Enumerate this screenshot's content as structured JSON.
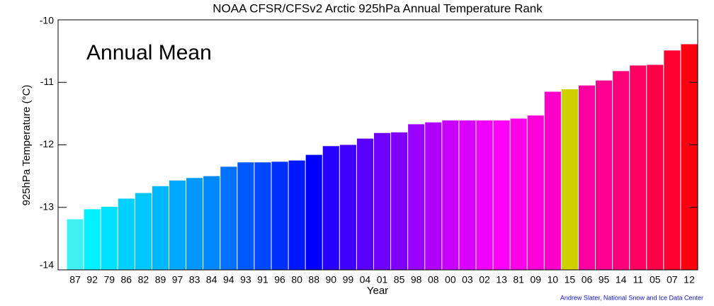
{
  "chart_data": {
    "type": "bar",
    "title": "NOAA CFSR/CFSv2 Arctic 925hPa Annual Temperature Rank",
    "annotation": "Annual Mean",
    "x_label": "Year",
    "y_label": "925hPa Temperature (°C)",
    "credit": "Andrew Slater, National Snow and Ice Data Center",
    "categories": [
      "87",
      "92",
      "79",
      "86",
      "82",
      "89",
      "97",
      "83",
      "84",
      "94",
      "93",
      "91",
      "96",
      "80",
      "88",
      "90",
      "99",
      "04",
      "01",
      "85",
      "98",
      "08",
      "00",
      "03",
      "02",
      "13",
      "81",
      "09",
      "10",
      "15",
      "06",
      "95",
      "14",
      "11",
      "05",
      "07",
      "12"
    ],
    "values": [
      -13.19,
      -13.03,
      -12.99,
      -12.86,
      -12.77,
      -12.66,
      -12.57,
      -12.53,
      -12.5,
      -12.35,
      -12.28,
      -12.28,
      -12.27,
      -12.25,
      -12.16,
      -12.02,
      -12.0,
      -11.9,
      -11.81,
      -11.8,
      -11.67,
      -11.64,
      -11.61,
      -11.61,
      -11.61,
      -11.61,
      -11.58,
      -11.53,
      -11.15,
      -11.11,
      -11.05,
      -10.97,
      -10.82,
      -10.73,
      -10.72,
      -10.49,
      -10.39
    ],
    "colors": [
      "#40f0f0",
      "#00f0ff",
      "#00e0ff",
      "#00d0ff",
      "#00c8ff",
      "#00b8ff",
      "#00a8ff",
      "#0098ff",
      "#0088ff",
      "#0070ff",
      "#0058ff",
      "#0048ff",
      "#0030ff",
      "#0018ff",
      "#0000ff",
      "#2800ff",
      "#4000ff",
      "#5800ff",
      "#7000ff",
      "#8000ff",
      "#9800ff",
      "#b000ff",
      "#c800ff",
      "#d800ff",
      "#f000ff",
      "#ff00f8",
      "#ff00e8",
      "#ff00d8",
      "#ff00c8",
      "#d0d000",
      "#ff00a0",
      "#ff0090",
      "#ff0078",
      "#ff0060",
      "#ff0048",
      "#ff0030",
      "#ff0010"
    ],
    "ylim": [
      -14,
      -10
    ],
    "yticks": [
      -14,
      -13,
      -12,
      -11,
      -10
    ]
  }
}
